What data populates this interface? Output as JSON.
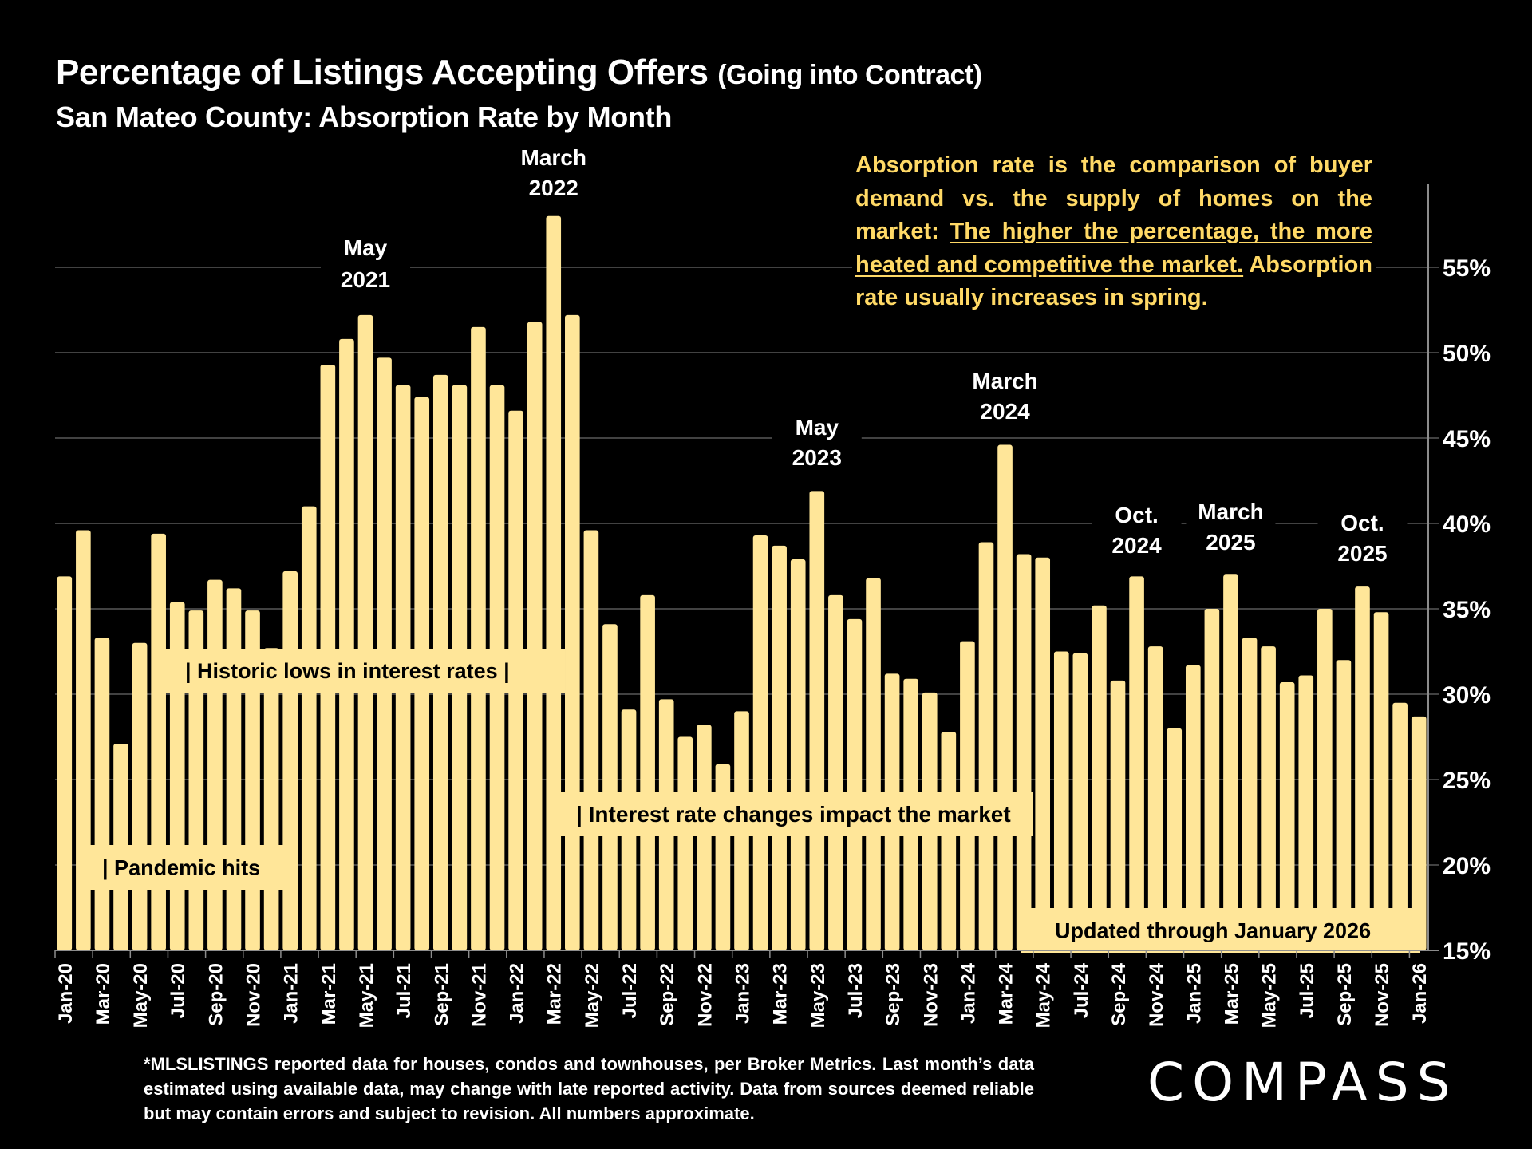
{
  "header": {
    "title_main": "Percentage of Listings Accepting Offers",
    "title_paren": "(Going into Contract)",
    "subtitle": "San Mateo County:  Absorption Rate by Month"
  },
  "note": {
    "before": "Absorption rate is the comparison of buyer demand vs. the supply of homes on the market: ",
    "underlined": "The higher the percentage, the more heated and competitive the market.",
    "after": " Absorption rate usually increases in spring."
  },
  "footer": {
    "text": "*MLSLISTINGS reported data for houses, condos and townhouses, per Broker Metrics. Last month’s data estimated using available data, may change with late reported activity. Data from sources deemed reliable but may contain errors and subject to revision. All numbers approximate."
  },
  "brand": {
    "logo_text": "COMPASS"
  },
  "colors": {
    "bar": "#FFE699",
    "background": "#000000",
    "note_text": "#FFD966",
    "grid": "#595959",
    "text": "#FFFFFF"
  },
  "chart_data": {
    "type": "bar",
    "title": "Percentage of Listings Accepting Offers (Going into Contract)",
    "subtitle": "San Mateo County:  Absorption Rate by Month",
    "xlabel": "",
    "ylabel": "",
    "ylim": [
      15,
      58
    ],
    "y_ticks": [
      "15%",
      "20%",
      "25%",
      "30%",
      "35%",
      "40%",
      "45%",
      "50%",
      "55%"
    ],
    "y_tick_values": [
      15,
      20,
      25,
      30,
      35,
      40,
      45,
      50,
      55
    ],
    "y_axis_side": "right",
    "grid": true,
    "categories": [
      "Jan-20",
      "Feb-20",
      "Mar-20",
      "Apr-20",
      "May-20",
      "Jun-20",
      "Jul-20",
      "Aug-20",
      "Sep-20",
      "Oct-20",
      "Nov-20",
      "Dec-20",
      "Jan-21",
      "Feb-21",
      "Mar-21",
      "Apr-21",
      "May-21",
      "Jun-21",
      "Jul-21",
      "Aug-21",
      "Sep-21",
      "Oct-21",
      "Nov-21",
      "Dec-21",
      "Jan-22",
      "Feb-22",
      "Mar-22",
      "Apr-22",
      "May-22",
      "Jun-22",
      "Jul-22",
      "Aug-22",
      "Sep-22",
      "Oct-22",
      "Nov-22",
      "Dec-22",
      "Jan-23",
      "Feb-23",
      "Mar-23",
      "Apr-23",
      "May-23",
      "Jun-23",
      "Jul-23",
      "Aug-23",
      "Sep-23",
      "Oct-23",
      "Nov-23",
      "Dec-23",
      "Jan-24",
      "Feb-24",
      "Mar-24",
      "Apr-24",
      "May-24",
      "Jun-24",
      "Jul-24",
      "Aug-24",
      "Sep-24",
      "Oct-24",
      "Nov-24",
      "Dec-24",
      "Jan-25",
      "Feb-25",
      "Mar-25",
      "Apr-25",
      "May-25",
      "Jun-25",
      "Jul-25",
      "Aug-25",
      "Sep-25",
      "Oct-25",
      "Nov-25",
      "Dec-25",
      "Jan-26"
    ],
    "x_tick_labels_every": 2,
    "values": [
      36.9,
      39.6,
      33.3,
      27.1,
      33.0,
      39.4,
      35.4,
      34.9,
      36.7,
      36.2,
      34.9,
      32.7,
      37.2,
      41.0,
      49.3,
      50.8,
      52.2,
      49.7,
      48.1,
      47.4,
      48.7,
      48.1,
      51.5,
      48.1,
      46.6,
      51.8,
      58.0,
      52.2,
      39.6,
      34.1,
      29.1,
      35.8,
      29.7,
      27.5,
      28.2,
      25.9,
      29.0,
      39.3,
      38.7,
      37.9,
      41.9,
      35.8,
      34.4,
      36.8,
      31.2,
      30.9,
      30.1,
      27.8,
      33.1,
      38.9,
      44.6,
      38.2,
      38.0,
      32.5,
      32.4,
      35.2,
      30.8,
      36.9,
      32.8,
      28.0,
      31.7,
      35.0,
      37.0,
      33.3,
      32.8,
      30.7,
      31.1,
      35.0,
      32.0,
      36.3,
      34.8,
      29.5,
      28.7
    ],
    "peak_annotations": [
      {
        "label_line1": "May",
        "label_line2": "2021",
        "category": "May-21"
      },
      {
        "label_line1": "March",
        "label_line2": "2022",
        "category": "Mar-22"
      },
      {
        "label_line1": "May",
        "label_line2": "2023",
        "category": "May-23"
      },
      {
        "label_line1": "March",
        "label_line2": "2024",
        "category": "Mar-24"
      },
      {
        "label_line1": "Oct.",
        "label_line2": "2024",
        "category": "Oct-24"
      },
      {
        "label_line1": "March",
        "label_line2": "2025",
        "category": "Mar-25"
      },
      {
        "label_line1": "Oct.",
        "label_line2": "2025",
        "category": "Oct-25"
      }
    ],
    "period_annotations": [
      {
        "text": "|  Pandemic hits",
        "from": "Feb-20",
        "to": "Dec-20"
      },
      {
        "text": "|   Historic lows in interest rates   |",
        "from": "Jun-20",
        "to": "Mar-22"
      },
      {
        "text": "| Interest rate changes impact the market",
        "from": "Mar-22",
        "to": "Apr-24"
      },
      {
        "text": "Updated through January 2026",
        "from": "Apr-24",
        "to": "Jan-26"
      }
    ]
  }
}
